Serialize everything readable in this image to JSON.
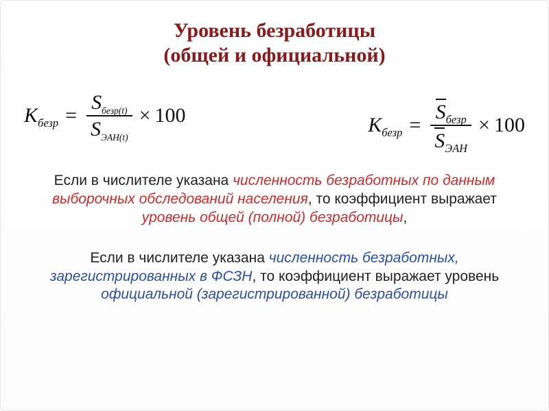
{
  "colors": {
    "title": "#8b1a1a",
    "text": "#222222",
    "red": "#d02a2a",
    "blue": "#2a4ea8",
    "formula": "#111111",
    "background": "#ffffff"
  },
  "typography": {
    "title_fontsize": 30,
    "formula_fontsize": 30,
    "body_fontsize": 21,
    "title_font": "Georgia / serif",
    "body_font": "Trebuchet MS / sans-serif"
  },
  "title": {
    "line1": "Уровень безработицы",
    "line2": "(общей и официальной)"
  },
  "formula1": {
    "lhs_var": "K",
    "lhs_sub": "безр",
    "num_var": "S",
    "num_sub": "безр(t)",
    "den_var": "S",
    "den_sub": "ЭАН(t)",
    "eq": "=",
    "times": "×",
    "factor": "100",
    "bar_over": false
  },
  "formula2": {
    "lhs_var": "K",
    "lhs_sub": "безр",
    "num_var": "S",
    "num_sub": "безр",
    "den_var": "S",
    "den_sub": "ЭАН",
    "eq": "=",
    "times": "×",
    "factor": "100",
    "bar_over": true
  },
  "para1": {
    "t1": "Если в числителе указана ",
    "r1": "численность безработных по данным выборочных обследований населения",
    "t2": ", то коэффициент выражает ",
    "r2": "уровень общей (полной) безработицы",
    "t3": ","
  },
  "para2": {
    "t1": "Если в числителе указана ",
    "b1": "численность безработных, зарегистрированных в ФСЗН",
    "t2": ", то  коэффициент выражает уровень ",
    "b2": "официальной (зарегистрированной) безработицы"
  }
}
